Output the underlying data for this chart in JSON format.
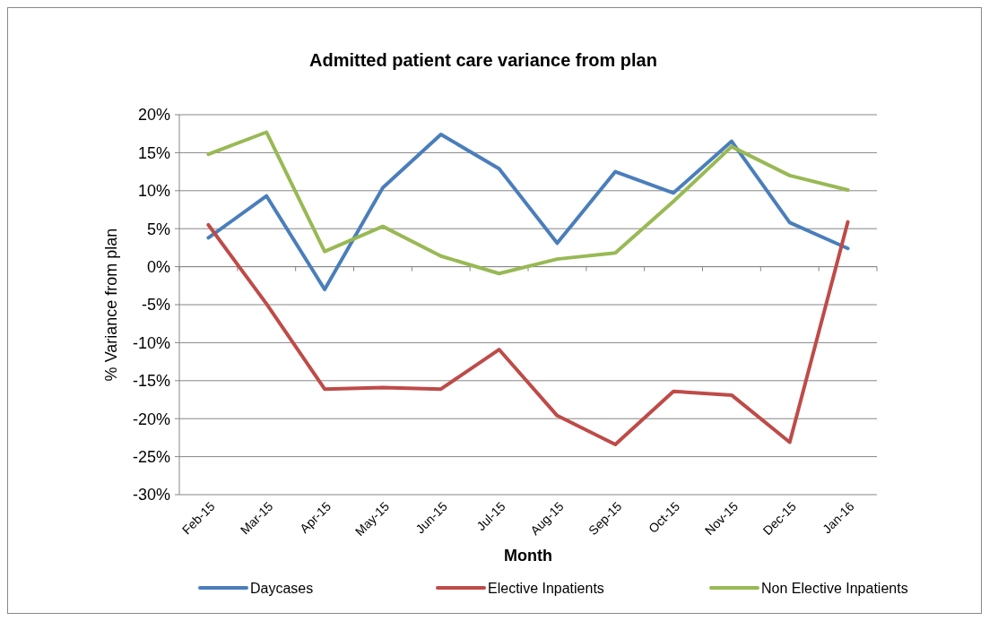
{
  "chart_data": {
    "type": "line",
    "title": "Admitted patient care variance from plan",
    "xlabel": "Month",
    "ylabel": "% Variance from plan",
    "categories": [
      "Feb-15",
      "Mar-15",
      "Apr-15",
      "May-15",
      "Jun-15",
      "Jul-15",
      "Aug-15",
      "Sep-15",
      "Oct-15",
      "Nov-15",
      "Dec-15",
      "Jan-16"
    ],
    "series": [
      {
        "name": "Daycases",
        "color": "#4a7ebb",
        "values": [
          3.8,
          9.3,
          -3.0,
          10.4,
          17.4,
          12.9,
          3.1,
          12.5,
          9.7,
          16.5,
          5.8,
          2.4
        ]
      },
      {
        "name": "Elective Inpatients",
        "color": "#be4b48",
        "values": [
          5.5,
          -4.9,
          -16.1,
          -15.9,
          -16.1,
          -10.9,
          -19.6,
          -23.4,
          -16.4,
          -16.9,
          -23.1,
          5.9
        ]
      },
      {
        "name": "Non Elective Inpatients",
        "color": "#98b954",
        "values": [
          14.8,
          17.7,
          2.0,
          5.3,
          1.4,
          -0.9,
          1.0,
          1.8,
          8.6,
          15.8,
          12.0,
          10.1
        ]
      }
    ],
    "ylim": [
      -30,
      20
    ],
    "yticks": [
      {
        "value": -30,
        "label": "-30%"
      },
      {
        "value": -25,
        "label": "-25%"
      },
      {
        "value": -20,
        "label": "-20%"
      },
      {
        "value": -15,
        "label": "-15%"
      },
      {
        "value": -10,
        "label": "-10%"
      },
      {
        "value": -5,
        "label": "-5%"
      },
      {
        "value": 0,
        "label": "0%"
      },
      {
        "value": 5,
        "label": "5%"
      },
      {
        "value": 10,
        "label": "10%"
      },
      {
        "value": 15,
        "label": "15%"
      },
      {
        "value": 20,
        "label": "20%"
      }
    ],
    "grid": "y",
    "legend": "bottom",
    "marker": "none",
    "line_style": "solid"
  }
}
